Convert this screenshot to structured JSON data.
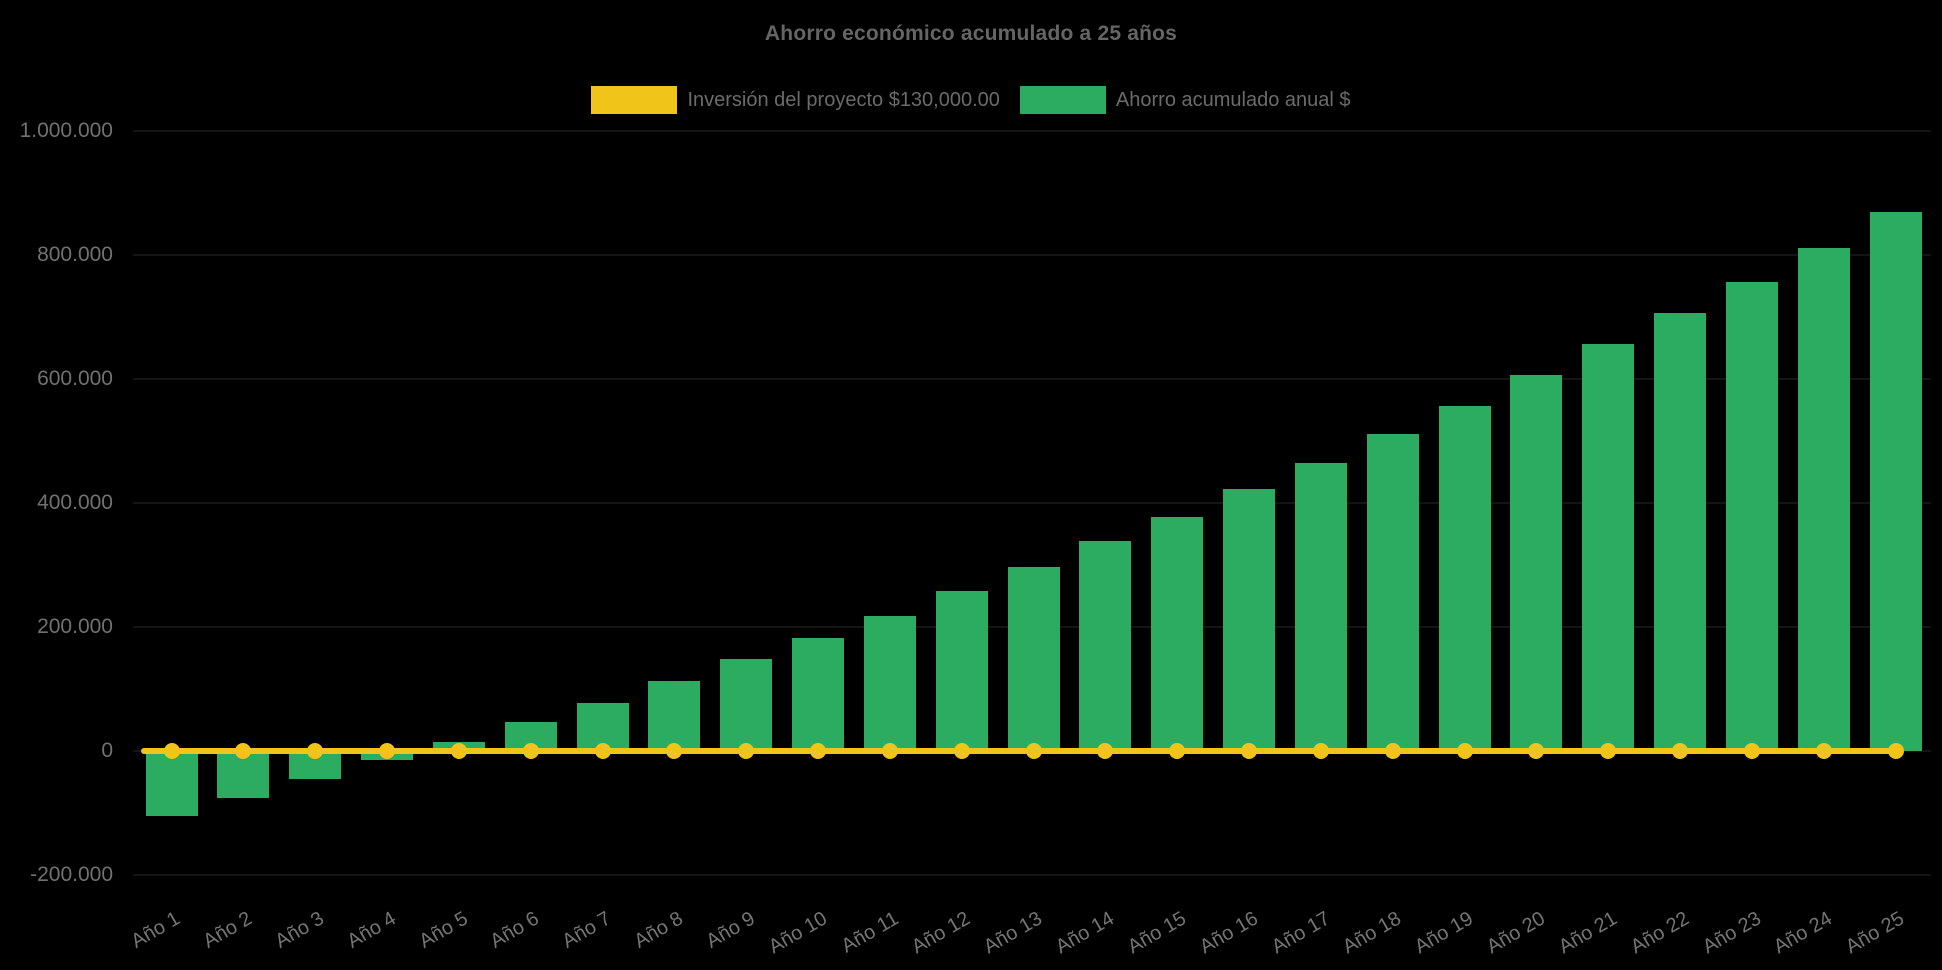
{
  "title": "Ahorro económico acumulado a 25 años",
  "background": "#000000",
  "legend": [
    {
      "label": "Inversión del proyecto $130,000.00",
      "color": "#F0C419"
    },
    {
      "label": "Ahorro acumulado anual $",
      "color": "#2BAC61"
    }
  ],
  "chart_data": {
    "type": "bar",
    "title": "Ahorro económico acumulado a 25 años",
    "categories": [
      "Año 1",
      "Año 2",
      "Año 3",
      "Año 4",
      "Año 5",
      "Año 6",
      "Año 7",
      "Año 8",
      "Año 9",
      "Año 10",
      "Año 11",
      "Año 12",
      "Año 13",
      "Año 14",
      "Año 15",
      "Año 16",
      "Año 17",
      "Año 18",
      "Año 19",
      "Año 20",
      "Año 21",
      "Año 22",
      "Año 23",
      "Año 24",
      "Año 25"
    ],
    "series": [
      {
        "name": "Inversión del proyecto $130,000.00",
        "type": "line",
        "color": "#F0C419",
        "values": [
          0,
          0,
          0,
          0,
          0,
          0,
          0,
          0,
          0,
          0,
          0,
          0,
          0,
          0,
          0,
          0,
          0,
          0,
          0,
          0,
          0,
          0,
          0,
          0,
          0
        ]
      },
      {
        "name": "Ahorro acumulado anual $",
        "type": "bar",
        "color": "#2BAC61",
        "values": [
          -105000,
          -75000,
          -45000,
          -15000,
          14000,
          46000,
          78000,
          113000,
          148000,
          183000,
          218000,
          258000,
          297000,
          338000,
          377000,
          422000,
          465000,
          511000,
          557000,
          606000,
          657000,
          706000,
          757000,
          812000,
          869000
        ]
      }
    ],
    "xlabel": "",
    "ylabel": "",
    "ylim": [
      -200000,
      1000000
    ],
    "ytick_step": 200000,
    "yticks": [
      {
        "label": "1.000.000",
        "value": 1000000
      },
      {
        "label": "800.000",
        "value": 800000
      },
      {
        "label": "600.000",
        "value": 600000
      },
      {
        "label": "400.000",
        "value": 400000
      },
      {
        "label": "200.000",
        "value": 200000
      },
      {
        "label": "0",
        "value": 0
      },
      {
        "label": "-200.000",
        "value": -200000
      }
    ],
    "grid": "horizontal",
    "legend_position": "top",
    "xlabel_rotation_deg": -30
  }
}
